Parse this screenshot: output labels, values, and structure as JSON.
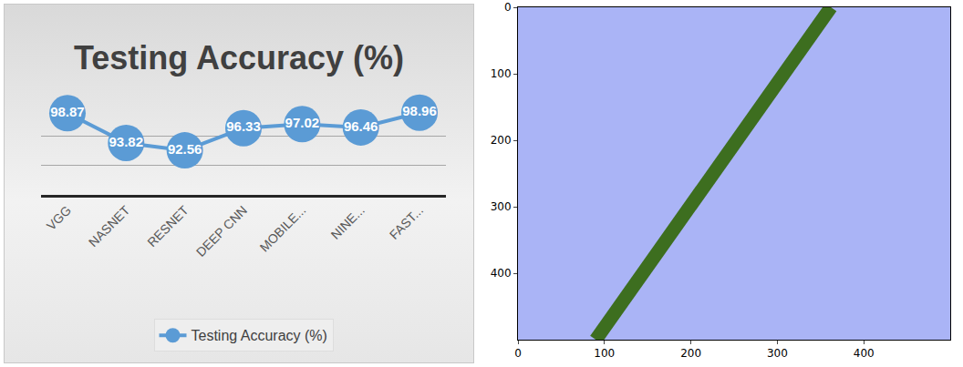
{
  "chart_data": [
    {
      "type": "line",
      "title": "Testing Accuracy (%)",
      "categories": [
        "VGG",
        "NASNET",
        "RESNET",
        "DEEP CNN",
        "MOBILE...",
        "NINE...",
        "FAST..."
      ],
      "series": [
        {
          "name": "Testing Accuracy (%)",
          "color": "#5b9bd5",
          "marker": "circle",
          "values": [
            98.87,
            93.82,
            92.56,
            96.33,
            97.02,
            96.46,
            98.96
          ]
        }
      ],
      "ylim": [
        85,
        100
      ],
      "yticks": [
        85,
        90,
        95,
        100
      ],
      "grid": true,
      "data_labels": true,
      "tick_labels": "x",
      "legend": "bottom"
    },
    {
      "type": "image",
      "color": "#aab4f6",
      "series": [
        {
          "color": "#3d6e1f",
          "x": [
            90,
            362
          ],
          "values": [
            500,
            0
          ]
        }
      ],
      "xlim": [
        0,
        500
      ],
      "ylim": [
        500,
        0
      ],
      "xticks": [
        0,
        100,
        200,
        300,
        400
      ],
      "yticks": [
        0,
        100,
        200,
        300,
        400
      ]
    }
  ]
}
